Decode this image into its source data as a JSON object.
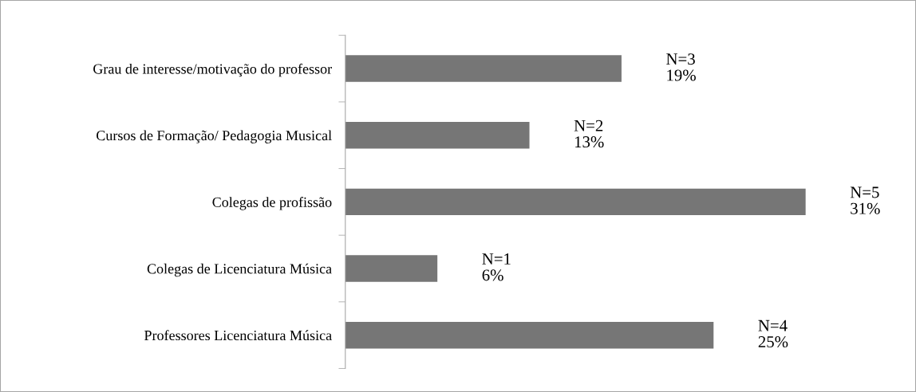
{
  "chart_data": {
    "type": "bar",
    "orientation": "horizontal",
    "categories": [
      "Grau de interesse/motivação do professor",
      "Cursos de Formação/ Pedagogia Musical",
      "Colegas de profissão",
      "Colegas de Licenciatura Música",
      "Professores Licenciatura Música"
    ],
    "values": [
      3,
      2,
      5,
      1,
      4
    ],
    "value_labels": [
      "N=3\n19%",
      "N=2\n13%",
      "N=5\n31%",
      "N=1\n6%",
      "N=4\n25%"
    ],
    "color": "#767676",
    "tick_labels": "y",
    "grid": false
  }
}
